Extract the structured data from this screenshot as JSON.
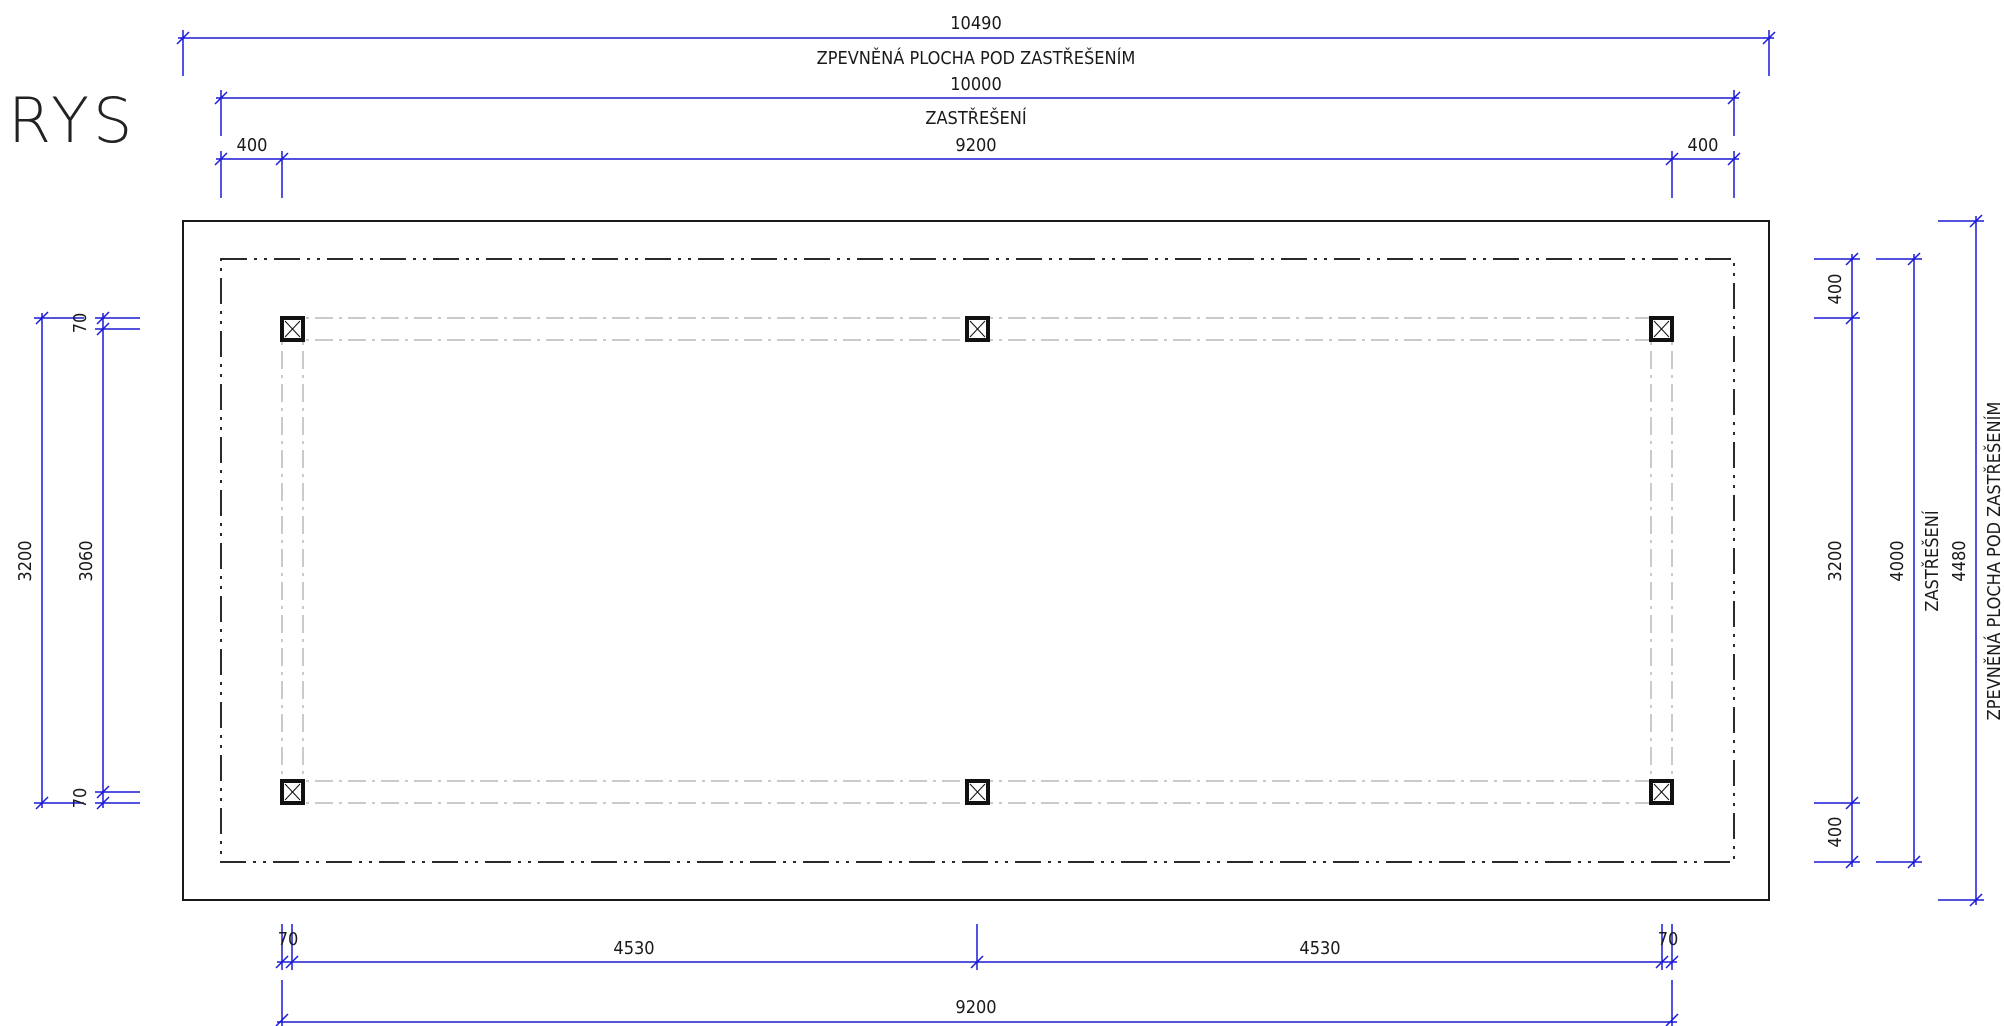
{
  "drawing": {
    "title": "RYS",
    "colors": {
      "dimension": "#1a1ad6",
      "outline": "#1a1a1a",
      "dashdot": "#2a2a2a",
      "beam": "#b8b8b8"
    },
    "top_dims": {
      "overall_value": "10490",
      "overall_label": "ZPEVNĚNÁ PLOCHA POD ZASTŘEŠENÍM",
      "roof_value": "10000",
      "roof_label": "ZASTŘEŠENÍ",
      "left_overhang": "400",
      "span": "9200",
      "right_overhang": "400"
    },
    "left_dims": {
      "overall": "3200",
      "inner": "3060",
      "top_offset": "70",
      "bottom_offset": "70"
    },
    "right_dims": {
      "top_overhang": "400",
      "span": "3200",
      "bottom_overhang": "400",
      "roof_value": "4000",
      "roof_label": "ZASTŘEŠENÍ",
      "overall_value": "4480",
      "overall_label": "ZPEVNĚNÁ PLOCHA POD ZASTŘEŠENÍM"
    },
    "bottom_dims": {
      "left_offset": "70",
      "left_span": "4530",
      "right_span": "4530",
      "right_offset": "70",
      "overall": "9200"
    }
  }
}
